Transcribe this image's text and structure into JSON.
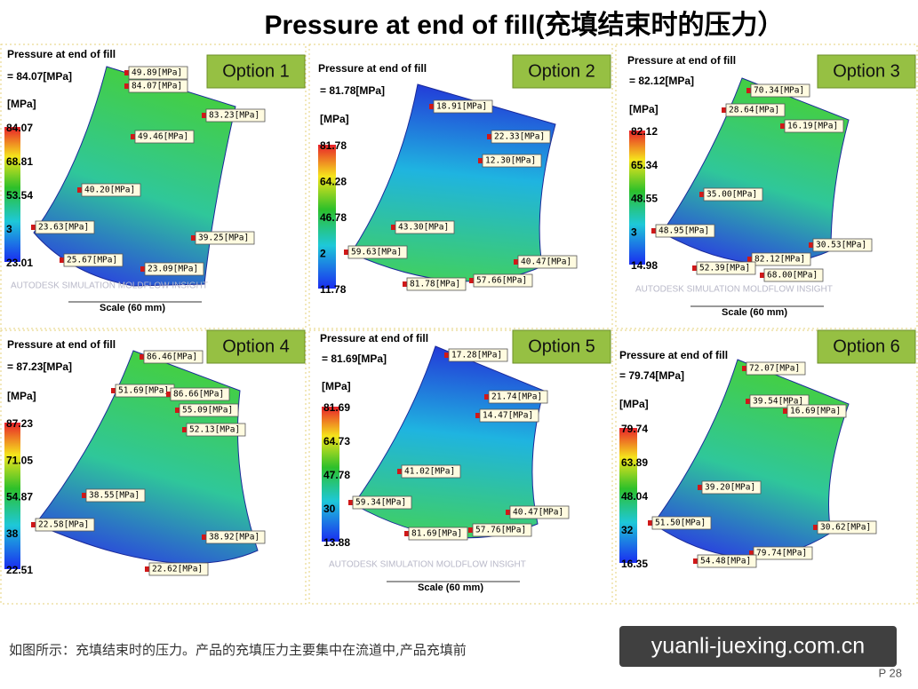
{
  "title": "Pressure at end of fill(充填结束时的压力）",
  "panels": [
    {
      "option": "Option 1",
      "header": "Pressure at end of fill",
      "max_label": "= 84.07[MPa]",
      "unit": "[MPa]",
      "legend_ticks": [
        "84.07",
        "68.81",
        "53.54",
        "3",
        "23.01"
      ],
      "callouts": [
        "49.89[MPa]",
        "84.07[MPa]",
        "83.23[MPa]",
        "49.46[MPa]",
        "40.20[MPa]",
        "23.63[MPa]",
        "39.25[MPa]",
        "25.67[MPa]",
        "23.09[MPa]"
      ],
      "watermark": "AUTODESK SIMULATION MOLDFLOW INSIGHT",
      "scale": "Scale (60 mm)"
    },
    {
      "option": "Option 2",
      "header": "Pressure at end of fill",
      "max_label": "= 81.78[MPa]",
      "unit": "[MPa]",
      "legend_ticks": [
        "81.78",
        "64.28",
        "46.78",
        "2",
        "11.78"
      ],
      "callouts": [
        "18.91[MPa]",
        "22.33[MPa]",
        "12.30[MPa]",
        "43.30[MPa]",
        "59.63[MPa]",
        "40.47[MPa]",
        "81.78[MPa]",
        "57.66[MPa]"
      ]
    },
    {
      "option": "Option 3",
      "header": "Pressure at end of fill",
      "max_label": "= 82.12[MPa]",
      "unit": "[MPa]",
      "legend_ticks": [
        "82.12",
        "65.34",
        "48.55",
        "3",
        "14.98"
      ],
      "callouts": [
        "70.34[MPa]",
        "28.64[MPa]",
        "16.19[MPa]",
        "35.00[MPa]",
        "48.95[MPa]",
        "30.53[MPa]",
        "82.12[MPa]",
        "52.39[MPa]",
        "68.00[MPa]"
      ],
      "watermark": "AUTODESK SIMULATION MOLDFLOW INSIGHT",
      "scale": "Scale (60 mm)"
    },
    {
      "option": "Option 4",
      "header": "Pressure at end of fill",
      "max_label": "= 87.23[MPa]",
      "unit": "[MPa]",
      "legend_ticks": [
        "87.23",
        "71.05",
        "54.87",
        "38",
        "22.51"
      ],
      "callouts": [
        "86.46[MPa]",
        "51.69[MPa]",
        "86.66[MPa]",
        "55.09[MPa]",
        "52.13[MPa]",
        "38.55[MPa]",
        "22.58[MPa]",
        "38.92[MPa]",
        "22.62[MPa]"
      ]
    },
    {
      "option": "Option 5",
      "header": "Pressure at end of fill",
      "max_label": "= 81.69[MPa]",
      "unit": "[MPa]",
      "legend_ticks": [
        "81.69",
        "64.73",
        "47.78",
        "30",
        "13.88"
      ],
      "callouts": [
        "17.28[MPa]",
        "21.74[MPa]",
        "14.47[MPa]",
        "41.02[MPa]",
        "59.34[MPa]",
        "40.47[MPa]",
        "81.69[MPa]",
        "57.76[MPa]"
      ],
      "watermark": "AUTODESK SIMULATION MOLDFLOW INSIGHT",
      "scale": "Scale (60 mm)"
    },
    {
      "option": "Option 6",
      "header": "Pressure at end of fill",
      "max_label": "= 79.74[MPa]",
      "unit": "[MPa]",
      "legend_ticks": [
        "79.74",
        "63.89",
        "48.04",
        "32",
        "16.35"
      ],
      "callouts": [
        "72.07[MPa]",
        "39.54[MPa]",
        "16.69[MPa]",
        "39.20[MPa]",
        "51.50[MPa]",
        "30.62[MPa]",
        "79.74[MPa]",
        "54.48[MPa]"
      ]
    }
  ],
  "footer_text": "如图所示：充填结束时的压力。产品的充填压力主要集中在流道中,产品充填前",
  "site_watermark": "yuanli-juexing.com.cn",
  "page_number": "P 28"
}
